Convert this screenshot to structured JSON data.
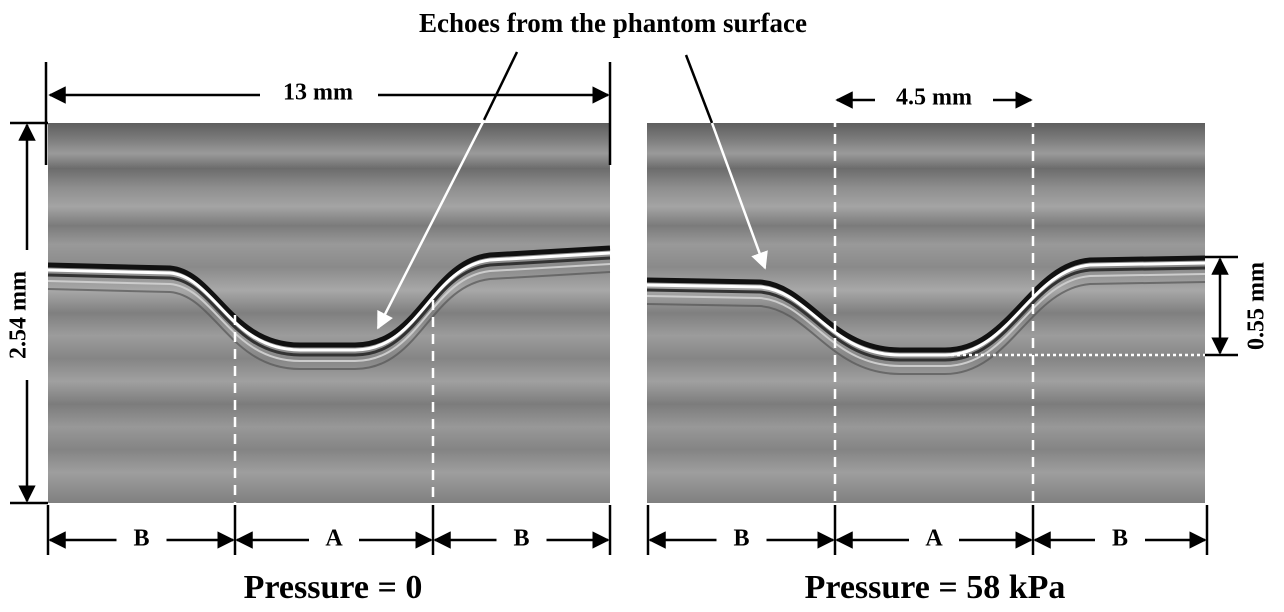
{
  "title": "Echoes from the phantom surface",
  "left_panel": {
    "width_label": "13 mm",
    "height_label": "2.54 mm",
    "regions": [
      "B",
      "A",
      "B"
    ],
    "caption": "Pressure = 0"
  },
  "right_panel": {
    "width_label": "4.5 mm",
    "depth_label": "0.55 mm",
    "regions": [
      "B",
      "A",
      "B"
    ],
    "caption": "Pressure = 58 kPa"
  }
}
